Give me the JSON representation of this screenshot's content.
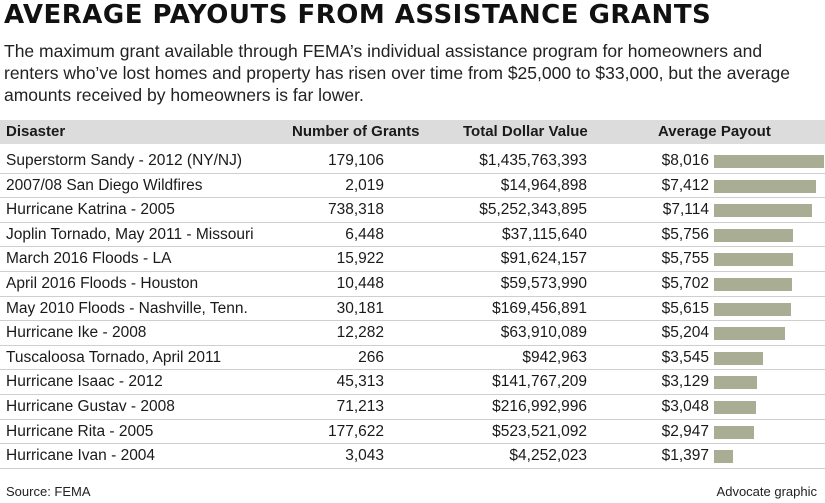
{
  "chart_data": {
    "type": "table",
    "title": "AVERAGE PAYOUTS FROM ASSISTANCE GRANTS",
    "subtitle": "The maximum grant available through FEMA’s individual assistance program for homeowners and renters who’ve lost homes and property has risen over time from $25,000 to $33,000, but the average amounts received by homeowners is far lower.",
    "columns": [
      "Disaster",
      "Number of Grants",
      "Total Dollar Value",
      "Average Payout"
    ],
    "rows": [
      {
        "disaster": "Superstorm Sandy - 2012 (NY/NJ)",
        "grants": "179,106",
        "total": "$1,435,763,393",
        "average": "$8,016",
        "average_value": 8016
      },
      {
        "disaster": "2007/08 San Diego Wildfires",
        "grants": "2,019",
        "total": "$14,964,898",
        "average": "$7,412",
        "average_value": 7412
      },
      {
        "disaster": "Hurricane Katrina - 2005",
        "grants": "738,318",
        "total": "$5,252,343,895",
        "average": "$7,114",
        "average_value": 7114
      },
      {
        "disaster": "Joplin Tornado, May 2011 - Missouri",
        "grants": "6,448",
        "total": "$37,115,640",
        "average": "$5,756",
        "average_value": 5756
      },
      {
        "disaster": "March 2016 Floods - LA",
        "grants": "15,922",
        "total": "$91,624,157",
        "average": "$5,755",
        "average_value": 5755
      },
      {
        "disaster": "April 2016 Floods - Houston",
        "grants": "10,448",
        "total": "$59,573,990",
        "average": "$5,702",
        "average_value": 5702
      },
      {
        "disaster": "May 2010 Floods - Nashville, Tenn.",
        "grants": "30,181",
        "total": "$169,456,891",
        "average": "$5,615",
        "average_value": 5615
      },
      {
        "disaster": "Hurricane Ike - 2008",
        "grants": "12,282",
        "total": "$63,910,089",
        "average": "$5,204",
        "average_value": 5204
      },
      {
        "disaster": "Tuscaloosa Tornado, April 2011",
        "grants": "266",
        "total": "$942,963",
        "average": "$3,545",
        "average_value": 3545
      },
      {
        "disaster": "Hurricane Isaac - 2012",
        "grants": "45,313",
        "total": "$141,767,209",
        "average": "$3,129",
        "average_value": 3129
      },
      {
        "disaster": "Hurricane Gustav - 2008",
        "grants": "71,213",
        "total": "$216,992,996",
        "average": "$3,048",
        "average_value": 3048
      },
      {
        "disaster": "Hurricane Rita - 2005",
        "grants": "177,622",
        "total": "$523,521,092",
        "average": "$2,947",
        "average_value": 2947
      },
      {
        "disaster": "Hurricane Ivan - 2004",
        "grants": "3,043",
        "total": "$4,252,023",
        "average": "$1,397",
        "average_value": 1397
      }
    ],
    "bar_color": "#a9ad93"
  },
  "footer": {
    "source": "Source: FEMA",
    "credit": "Advocate graphic"
  }
}
